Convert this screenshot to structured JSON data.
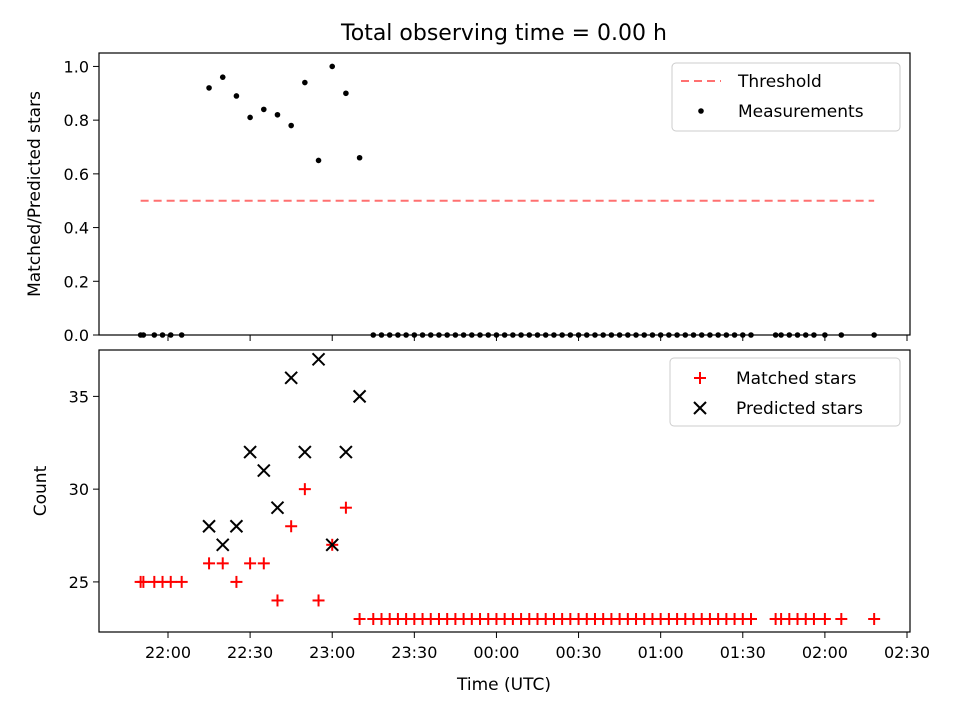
{
  "title": "Total observing time = 0.00 h",
  "colors": {
    "threshold": "#ff7070",
    "measurements": "#000000",
    "matched": "#ff0000",
    "predicted": "#000000"
  },
  "chart_data": [
    {
      "type": "scatter",
      "ylabel": "Matched/Predicted stars",
      "ylim": [
        0,
        1.05
      ],
      "yticks": [
        "0.0",
        "0.2",
        "0.4",
        "0.6",
        "0.8",
        "1.0"
      ],
      "legend": {
        "position": "top-right",
        "entries": [
          "Threshold",
          "Measurements"
        ]
      },
      "threshold": {
        "name": "Threshold",
        "value": 0.5,
        "x_start": "21:50",
        "x_end": "02:18"
      },
      "series": [
        {
          "name": "Measurements",
          "points": [
            [
              "21:50",
              0
            ],
            [
              "21:51",
              0
            ],
            [
              "21:55",
              0
            ],
            [
              "21:58",
              0
            ],
            [
              "22:01",
              0
            ],
            [
              "22:05",
              0
            ],
            [
              "22:15",
              0.92
            ],
            [
              "22:20",
              0.96
            ],
            [
              "22:25",
              0.89
            ],
            [
              "22:30",
              0.81
            ],
            [
              "22:35",
              0.84
            ],
            [
              "22:40",
              0.82
            ],
            [
              "22:45",
              0.78
            ],
            [
              "22:50",
              0.94
            ],
            [
              "22:55",
              0.65
            ],
            [
              "23:00",
              1.0
            ],
            [
              "23:05",
              0.9
            ],
            [
              "23:10",
              0.66
            ],
            [
              "23:15",
              0
            ],
            [
              "23:18",
              0
            ],
            [
              "23:21",
              0
            ],
            [
              "23:24",
              0
            ],
            [
              "23:27",
              0
            ],
            [
              "23:30",
              0
            ],
            [
              "23:33",
              0
            ],
            [
              "23:36",
              0
            ],
            [
              "23:39",
              0
            ],
            [
              "23:42",
              0
            ],
            [
              "23:45",
              0
            ],
            [
              "23:48",
              0
            ],
            [
              "23:51",
              0
            ],
            [
              "23:54",
              0
            ],
            [
              "23:57",
              0
            ],
            [
              "00:00",
              0
            ],
            [
              "00:03",
              0
            ],
            [
              "00:06",
              0
            ],
            [
              "00:09",
              0
            ],
            [
              "00:12",
              0
            ],
            [
              "00:15",
              0
            ],
            [
              "00:18",
              0
            ],
            [
              "00:21",
              0
            ],
            [
              "00:24",
              0
            ],
            [
              "00:27",
              0
            ],
            [
              "00:30",
              0
            ],
            [
              "00:33",
              0
            ],
            [
              "00:36",
              0
            ],
            [
              "00:39",
              0
            ],
            [
              "00:42",
              0
            ],
            [
              "00:45",
              0
            ],
            [
              "00:48",
              0
            ],
            [
              "00:51",
              0
            ],
            [
              "00:54",
              0
            ],
            [
              "00:57",
              0
            ],
            [
              "01:00",
              0
            ],
            [
              "01:03",
              0
            ],
            [
              "01:06",
              0
            ],
            [
              "01:09",
              0
            ],
            [
              "01:12",
              0
            ],
            [
              "01:15",
              0
            ],
            [
              "01:18",
              0
            ],
            [
              "01:21",
              0
            ],
            [
              "01:24",
              0
            ],
            [
              "01:27",
              0
            ],
            [
              "01:30",
              0
            ],
            [
              "01:33",
              0
            ],
            [
              "01:42",
              0
            ],
            [
              "01:44",
              0
            ],
            [
              "01:47",
              0
            ],
            [
              "01:50",
              0
            ],
            [
              "01:53",
              0
            ],
            [
              "01:56",
              0
            ],
            [
              "02:00",
              0
            ],
            [
              "02:06",
              0
            ],
            [
              "02:18",
              0
            ]
          ]
        }
      ]
    },
    {
      "type": "scatter",
      "xlabel": "Time (UTC)",
      "ylabel": "Count",
      "ylim": [
        22.3,
        37.5
      ],
      "yticks": [
        "25",
        "30",
        "35"
      ],
      "xticks": [
        "22:00",
        "22:30",
        "23:00",
        "23:30",
        "00:00",
        "00:30",
        "01:00",
        "01:30",
        "02:00",
        "02:30"
      ],
      "legend": {
        "position": "top-right",
        "entries": [
          "Matched stars",
          "Predicted stars"
        ]
      },
      "series": [
        {
          "name": "Matched stars",
          "marker": "+",
          "points": [
            [
              "21:50",
              25
            ],
            [
              "21:51",
              25
            ],
            [
              "21:55",
              25
            ],
            [
              "21:58",
              25
            ],
            [
              "22:01",
              25
            ],
            [
              "22:05",
              25
            ],
            [
              "22:15",
              26
            ],
            [
              "22:20",
              26
            ],
            [
              "22:25",
              25
            ],
            [
              "22:30",
              26
            ],
            [
              "22:35",
              26
            ],
            [
              "22:40",
              24
            ],
            [
              "22:45",
              28
            ],
            [
              "22:50",
              30
            ],
            [
              "22:55",
              24
            ],
            [
              "23:00",
              27
            ],
            [
              "23:05",
              29
            ],
            [
              "23:10",
              23
            ],
            [
              "23:15",
              23
            ],
            [
              "23:18",
              23
            ],
            [
              "23:21",
              23
            ],
            [
              "23:24",
              23
            ],
            [
              "23:27",
              23
            ],
            [
              "23:30",
              23
            ],
            [
              "23:33",
              23
            ],
            [
              "23:36",
              23
            ],
            [
              "23:39",
              23
            ],
            [
              "23:42",
              23
            ],
            [
              "23:45",
              23
            ],
            [
              "23:48",
              23
            ],
            [
              "23:51",
              23
            ],
            [
              "23:54",
              23
            ],
            [
              "23:57",
              23
            ],
            [
              "00:00",
              23
            ],
            [
              "00:03",
              23
            ],
            [
              "00:06",
              23
            ],
            [
              "00:09",
              23
            ],
            [
              "00:12",
              23
            ],
            [
              "00:15",
              23
            ],
            [
              "00:18",
              23
            ],
            [
              "00:21",
              23
            ],
            [
              "00:24",
              23
            ],
            [
              "00:27",
              23
            ],
            [
              "00:30",
              23
            ],
            [
              "00:33",
              23
            ],
            [
              "00:36",
              23
            ],
            [
              "00:39",
              23
            ],
            [
              "00:42",
              23
            ],
            [
              "00:45",
              23
            ],
            [
              "00:48",
              23
            ],
            [
              "00:51",
              23
            ],
            [
              "00:54",
              23
            ],
            [
              "00:57",
              23
            ],
            [
              "01:00",
              23
            ],
            [
              "01:03",
              23
            ],
            [
              "01:06",
              23
            ],
            [
              "01:09",
              23
            ],
            [
              "01:12",
              23
            ],
            [
              "01:15",
              23
            ],
            [
              "01:18",
              23
            ],
            [
              "01:21",
              23
            ],
            [
              "01:24",
              23
            ],
            [
              "01:27",
              23
            ],
            [
              "01:30",
              23
            ],
            [
              "01:33",
              23
            ],
            [
              "01:42",
              23
            ],
            [
              "01:44",
              23
            ],
            [
              "01:47",
              23
            ],
            [
              "01:50",
              23
            ],
            [
              "01:53",
              23
            ],
            [
              "01:56",
              23
            ],
            [
              "02:00",
              23
            ],
            [
              "02:06",
              23
            ],
            [
              "02:18",
              23
            ]
          ]
        },
        {
          "name": "Predicted stars",
          "marker": "x",
          "points": [
            [
              "22:15",
              28
            ],
            [
              "22:20",
              27
            ],
            [
              "22:25",
              28
            ],
            [
              "22:30",
              32
            ],
            [
              "22:35",
              31
            ],
            [
              "22:40",
              29
            ],
            [
              "22:45",
              36
            ],
            [
              "22:50",
              32
            ],
            [
              "22:55",
              37
            ],
            [
              "23:00",
              27
            ],
            [
              "23:05",
              32
            ],
            [
              "23:10",
              35
            ]
          ]
        }
      ]
    }
  ]
}
